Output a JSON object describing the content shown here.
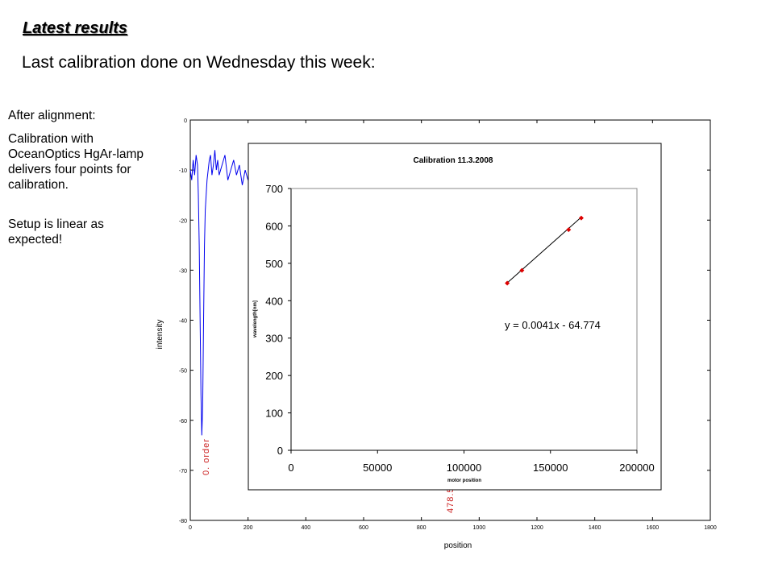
{
  "slide": {
    "title": "Latest results",
    "subtitle": "Last calibration done on Wednesday this week:",
    "notes": [
      "After alignment:",
      "Calibration with OceanOptics HgAr-lamp delivers four points for calibration.",
      "Setup is linear as expected!"
    ]
  },
  "chart_data": [
    {
      "type": "line",
      "title": "",
      "xlabel": "position",
      "ylabel": "intensity",
      "xlim": [
        0,
        1800
      ],
      "ylim": [
        -80,
        0
      ],
      "xticks": [
        0,
        200,
        400,
        600,
        800,
        1000,
        1200,
        1400,
        1600,
        1800
      ],
      "yticks": [
        0,
        -10,
        -20,
        -30,
        -40,
        -50,
        -60,
        -70,
        -80
      ],
      "grid": false,
      "series_color": "#0000ee",
      "series": [
        {
          "x": [
            0,
            5,
            10,
            15,
            20,
            25,
            28,
            31,
            34,
            37,
            40,
            43,
            46,
            49,
            52,
            55,
            58,
            62,
            66,
            70,
            75,
            80,
            85,
            90,
            95,
            100,
            110,
            120,
            130,
            140,
            150,
            160,
            170,
            180,
            190,
            200
          ],
          "y": [
            -10,
            -12,
            -8,
            -11,
            -7,
            -9,
            -15,
            -25,
            -40,
            -55,
            -63,
            -57,
            -40,
            -25,
            -18,
            -15,
            -12,
            -10,
            -8,
            -7,
            -11,
            -9,
            -6,
            -10,
            -8,
            -11,
            -9,
            -7,
            -12,
            -10,
            -8,
            -11,
            -9,
            -13,
            -10,
            -12
          ]
        }
      ],
      "annotations": [
        {
          "text": "0. order",
          "x": 55,
          "y": -70,
          "color": "#cc2222"
        },
        {
          "text": "478.5",
          "x": 905,
          "y": -78,
          "color": "#cc2222"
        }
      ]
    },
    {
      "type": "scatter",
      "title": "Calibration 11.3.2008",
      "xlabel": "motor position",
      "ylabel": "wavelength[nm]",
      "xlim": [
        0,
        200000
      ],
      "ylim": [
        0,
        700
      ],
      "xticks": [
        0,
        50000,
        100000,
        150000,
        200000
      ],
      "yticks": [
        0,
        100,
        200,
        300,
        400,
        500,
        600,
        700
      ],
      "grid": false,
      "point_color": "#dd0000",
      "points": [
        {
          "x": 125000,
          "y": 447
        },
        {
          "x": 133500,
          "y": 481
        },
        {
          "x": 160500,
          "y": 590
        },
        {
          "x": 167800,
          "y": 621
        }
      ],
      "trendline": {
        "slope": 0.0041,
        "intercept": -64.774,
        "label": "y = 0.0041x - 64.774"
      }
    }
  ]
}
